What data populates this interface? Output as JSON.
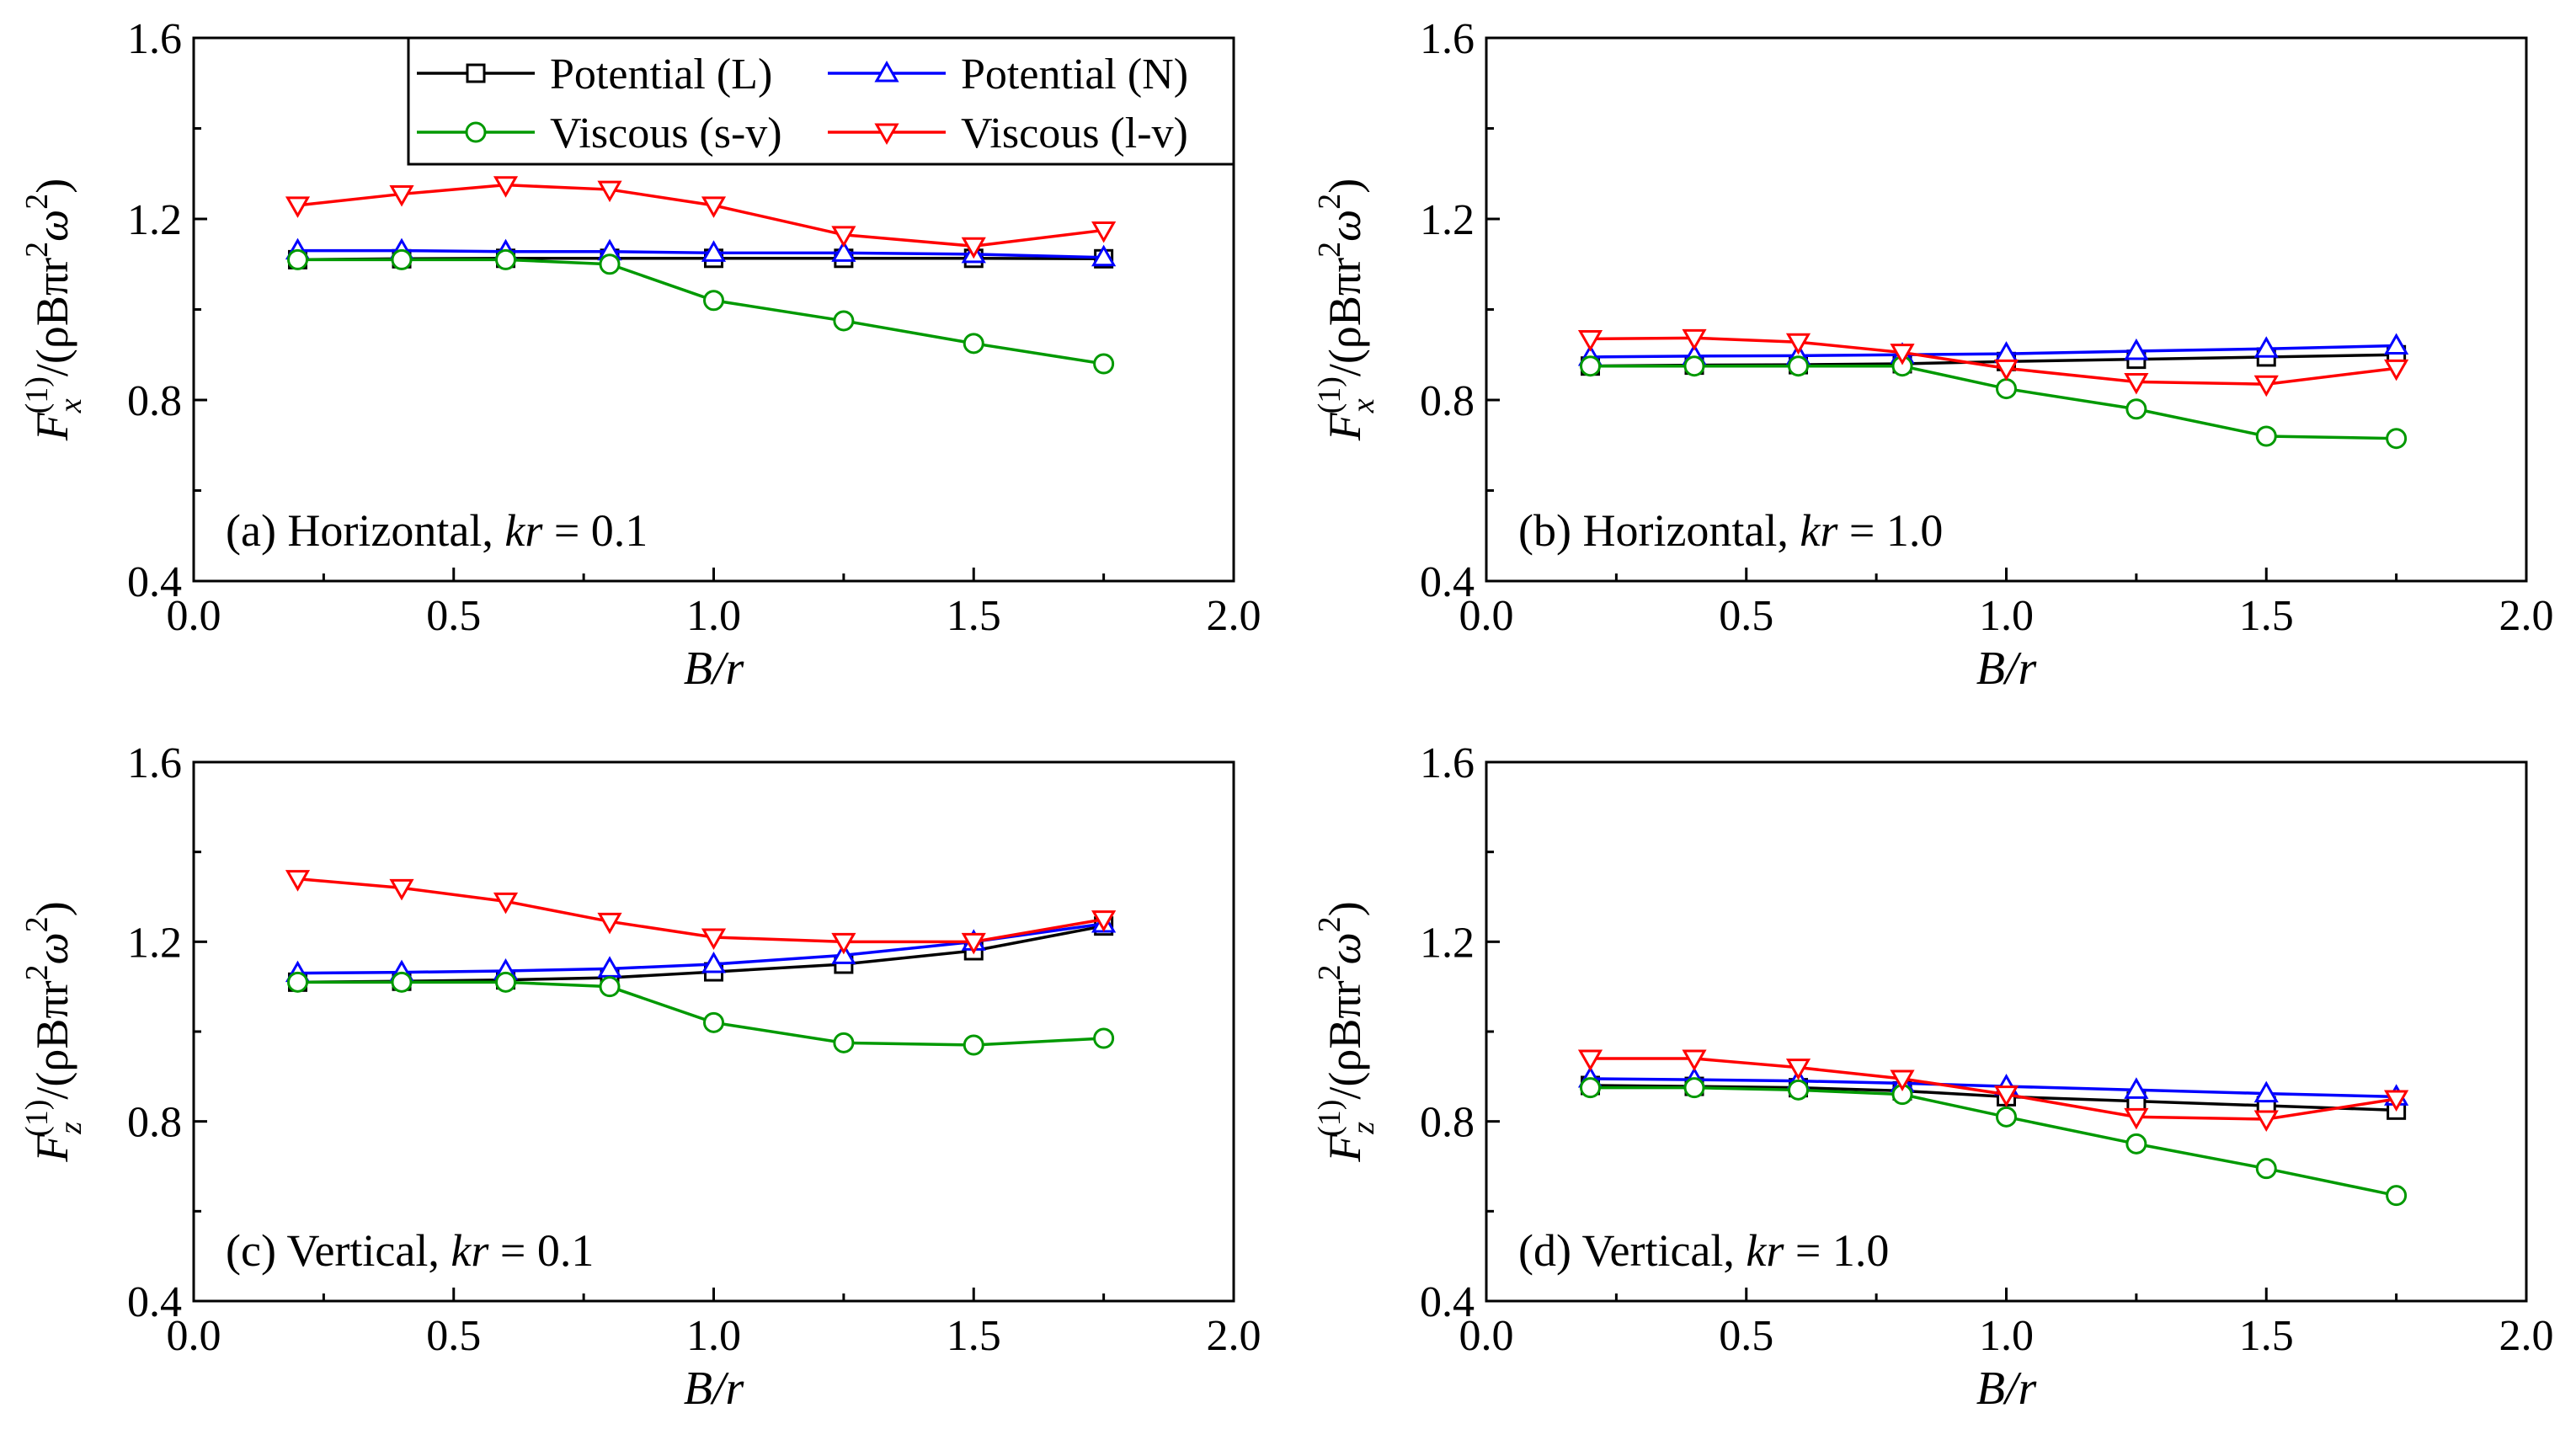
{
  "legend": [
    {
      "key": "potL",
      "label": "Potential (L)"
    },
    {
      "key": "potN",
      "label": "Potential (N)"
    },
    {
      "key": "visSV",
      "label": "Viscous (s-v)"
    },
    {
      "key": "visLV",
      "label": "Viscous (l-v)"
    }
  ],
  "styles": {
    "potL": {
      "color": "#000000",
      "marker": "square"
    },
    "potN": {
      "color": "#0000ff",
      "marker": "triangle-up"
    },
    "visSV": {
      "color": "#009900",
      "marker": "circle"
    },
    "visLV": {
      "color": "#ff0000",
      "marker": "triangle-down"
    }
  },
  "chart_data": [
    {
      "type": "line",
      "panel": "a",
      "label_parts": [
        "(a) Horizontal, ",
        "kr",
        " = 0.1"
      ],
      "xlabel": "B/r",
      "ylabel": {
        "F": "F",
        "sub": "x",
        "sup": "(1)",
        "rest": "/(ρBπr",
        "sq1": "2",
        "omega": "ω",
        "sq2": "2",
        "close": ")"
      },
      "xlim": [
        0,
        2
      ],
      "ylim": [
        0.4,
        1.6
      ],
      "xticks": [
        "0.0",
        "0.5",
        "1.0",
        "1.5",
        "2.0"
      ],
      "yticks": [
        "0.4",
        "0.8",
        "1.2",
        "1.6"
      ],
      "x": [
        0.2,
        0.4,
        0.6,
        0.8,
        1.0,
        1.25,
        1.5,
        1.75
      ],
      "series": [
        {
          "key": "potL",
          "name": "Potential (L)",
          "values": [
            1.11,
            1.112,
            1.113,
            1.113,
            1.113,
            1.113,
            1.113,
            1.112
          ]
        },
        {
          "key": "potN",
          "name": "Potential (N)",
          "values": [
            1.13,
            1.13,
            1.128,
            1.128,
            1.125,
            1.125,
            1.122,
            1.115
          ]
        },
        {
          "key": "visSV",
          "name": "Viscous (s-v)",
          "values": [
            1.11,
            1.11,
            1.11,
            1.1,
            1.02,
            0.975,
            0.925,
            0.88
          ]
        },
        {
          "key": "visLV",
          "name": "Viscous (l-v)",
          "values": [
            1.23,
            1.255,
            1.275,
            1.265,
            1.23,
            1.165,
            1.14,
            1.175
          ]
        }
      ],
      "legend": true
    },
    {
      "type": "line",
      "panel": "b",
      "label_parts": [
        "(b) Horizontal, ",
        "kr",
        " = 1.0"
      ],
      "xlabel": "B/r",
      "ylabel": {
        "F": "F",
        "sub": "x",
        "sup": "(1)",
        "rest": "/(ρBπr",
        "sq1": "2",
        "omega": "ω",
        "sq2": "2",
        "close": ")"
      },
      "xlim": [
        0,
        2
      ],
      "ylim": [
        0.4,
        1.6
      ],
      "xticks": [
        "0.0",
        "0.5",
        "1.0",
        "1.5",
        "2.0"
      ],
      "yticks": [
        "0.4",
        "0.8",
        "1.2",
        "1.6"
      ],
      "x": [
        0.2,
        0.4,
        0.6,
        0.8,
        1.0,
        1.25,
        1.5,
        1.75
      ],
      "series": [
        {
          "key": "potL",
          "name": "Potential (L)",
          "values": [
            0.875,
            0.877,
            0.878,
            0.88,
            0.885,
            0.89,
            0.895,
            0.9
          ]
        },
        {
          "key": "potN",
          "name": "Potential (N)",
          "values": [
            0.895,
            0.897,
            0.898,
            0.9,
            0.902,
            0.908,
            0.913,
            0.92
          ]
        },
        {
          "key": "visSV",
          "name": "Viscous (s-v)",
          "values": [
            0.875,
            0.875,
            0.875,
            0.875,
            0.825,
            0.78,
            0.72,
            0.715
          ]
        },
        {
          "key": "visLV",
          "name": "Viscous (l-v)",
          "values": [
            0.935,
            0.937,
            0.928,
            0.905,
            0.87,
            0.84,
            0.835,
            0.87
          ]
        }
      ],
      "legend": false
    },
    {
      "type": "line",
      "panel": "c",
      "label_parts": [
        "(c) Vertical, ",
        "kr",
        " = 0.1"
      ],
      "xlabel": "B/r",
      "ylabel": {
        "F": "F",
        "sub": "z",
        "sup": "(1)",
        "rest": "/(ρBπr",
        "sq1": "2",
        "omega": "ω",
        "sq2": "2",
        "close": ")"
      },
      "xlim": [
        0,
        2
      ],
      "ylim": [
        0.4,
        1.6
      ],
      "xticks": [
        "0.0",
        "0.5",
        "1.0",
        "1.5",
        "2.0"
      ],
      "yticks": [
        "0.4",
        "0.8",
        "1.2",
        "1.6"
      ],
      "x": [
        0.2,
        0.4,
        0.6,
        0.8,
        1.0,
        1.25,
        1.5,
        1.75
      ],
      "series": [
        {
          "key": "potL",
          "name": "Potential (L)",
          "values": [
            1.11,
            1.112,
            1.115,
            1.12,
            1.133,
            1.15,
            1.18,
            1.235
          ]
        },
        {
          "key": "potN",
          "name": "Potential (N)",
          "values": [
            1.13,
            1.132,
            1.135,
            1.14,
            1.15,
            1.17,
            1.2,
            1.24
          ]
        },
        {
          "key": "visSV",
          "name": "Viscous (s-v)",
          "values": [
            1.11,
            1.11,
            1.11,
            1.1,
            1.02,
            0.975,
            0.97,
            0.985
          ]
        },
        {
          "key": "visLV",
          "name": "Viscous (l-v)",
          "values": [
            1.34,
            1.32,
            1.29,
            1.245,
            1.21,
            1.2,
            1.2,
            1.25
          ]
        }
      ],
      "legend": false
    },
    {
      "type": "line",
      "panel": "d",
      "label_parts": [
        "(d) Vertical, ",
        "kr",
        " = 1.0"
      ],
      "xlabel": "B/r",
      "ylabel": {
        "F": "F",
        "sub": "z",
        "sup": "(1)",
        "rest": "/(ρBπr",
        "sq1": "2",
        "omega": "ω",
        "sq2": "2",
        "close": ")"
      },
      "xlim": [
        0,
        2
      ],
      "ylim": [
        0.4,
        1.6
      ],
      "xticks": [
        "0.0",
        "0.5",
        "1.0",
        "1.5",
        "2.0"
      ],
      "yticks": [
        "0.4",
        "0.8",
        "1.2",
        "1.6"
      ],
      "x": [
        0.2,
        0.4,
        0.6,
        0.8,
        1.0,
        1.25,
        1.5,
        1.75
      ],
      "series": [
        {
          "key": "potL",
          "name": "Potential (L)",
          "values": [
            0.88,
            0.878,
            0.875,
            0.868,
            0.855,
            0.845,
            0.835,
            0.825
          ]
        },
        {
          "key": "potN",
          "name": "Potential (N)",
          "values": [
            0.895,
            0.893,
            0.89,
            0.885,
            0.878,
            0.87,
            0.862,
            0.855
          ]
        },
        {
          "key": "visSV",
          "name": "Viscous (s-v)",
          "values": [
            0.875,
            0.875,
            0.87,
            0.86,
            0.81,
            0.75,
            0.695,
            0.635
          ]
        },
        {
          "key": "visLV",
          "name": "Viscous (l-v)",
          "values": [
            0.94,
            0.94,
            0.92,
            0.895,
            0.86,
            0.81,
            0.805,
            0.85
          ]
        }
      ],
      "legend": false
    }
  ]
}
